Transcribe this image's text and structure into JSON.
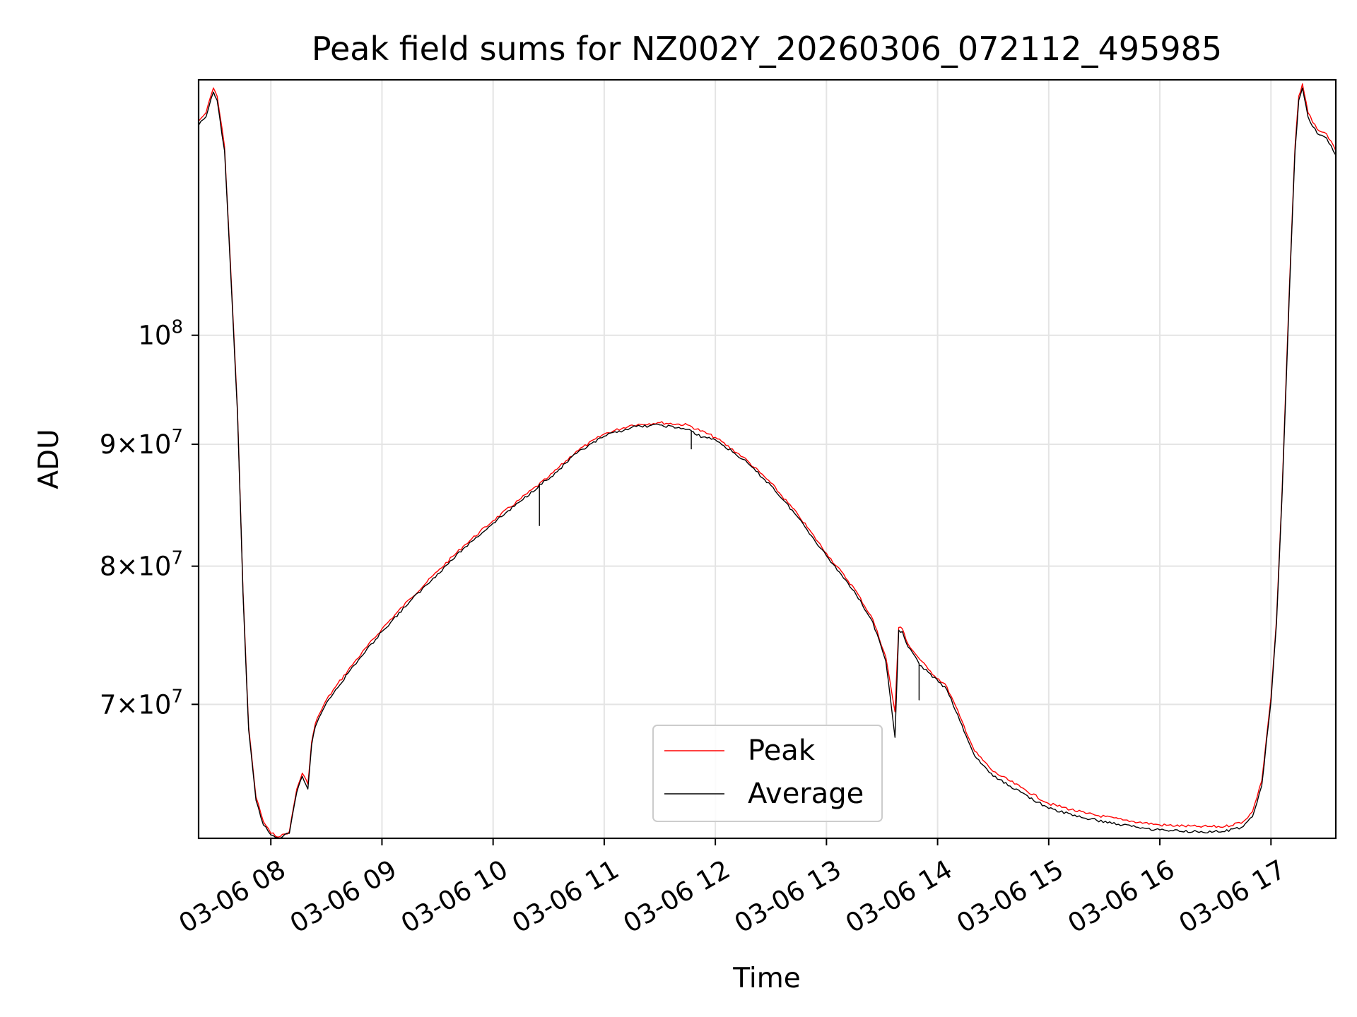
{
  "chart_data": {
    "type": "line",
    "title": "Peak field sums for NZ002Y_20260306_072112_495985",
    "xlabel": "Time",
    "ylabel": "ADU",
    "x_scale": "time",
    "y_scale": "log",
    "xlim": [
      "2026-03-06 07:21",
      "2026-03-06 17:35"
    ],
    "ylim": [
      61500000,
      128000000
    ],
    "grid": true,
    "legend_position": "lower center",
    "x_ticks": [
      {
        "value": "2026-03-06 08:00",
        "label": "03-06 08"
      },
      {
        "value": "2026-03-06 09:00",
        "label": "03-06 09"
      },
      {
        "value": "2026-03-06 10:00",
        "label": "03-06 10"
      },
      {
        "value": "2026-03-06 11:00",
        "label": "03-06 11"
      },
      {
        "value": "2026-03-06 12:00",
        "label": "03-06 12"
      },
      {
        "value": "2026-03-06 13:00",
        "label": "03-06 13"
      },
      {
        "value": "2026-03-06 14:00",
        "label": "03-06 14"
      },
      {
        "value": "2026-03-06 15:00",
        "label": "03-06 15"
      },
      {
        "value": "2026-03-06 16:00",
        "label": "03-06 16"
      },
      {
        "value": "2026-03-06 17:00",
        "label": "03-06 17"
      }
    ],
    "y_ticks": [
      {
        "value": 70000000,
        "mant": "7",
        "exp": "7"
      },
      {
        "value": 80000000,
        "mant": "8",
        "exp": "7"
      },
      {
        "value": 90000000,
        "mant": "9",
        "exp": "7"
      },
      {
        "value": 100000000,
        "mant": "",
        "exp": "8"
      }
    ],
    "series": [
      {
        "name": "Peak",
        "color": "#ff0000",
        "x": [
          "2026-03-06 07:21",
          "2026-03-06 07:25",
          "2026-03-06 07:29",
          "2026-03-06 07:31",
          "2026-03-06 07:35",
          "2026-03-06 07:38",
          "2026-03-06 07:42",
          "2026-03-06 07:45",
          "2026-03-06 07:48",
          "2026-03-06 07:52",
          "2026-03-06 07:56",
          "2026-03-06 08:00",
          "2026-03-06 08:05",
          "2026-03-06 08:10",
          "2026-03-06 08:14",
          "2026-03-06 08:17",
          "2026-03-06 08:20",
          "2026-03-06 08:22",
          "2026-03-06 08:24",
          "2026-03-06 08:26",
          "2026-03-06 08:28",
          "2026-03-06 08:30",
          "2026-03-06 08:35",
          "2026-03-06 08:45",
          "2026-03-06 09:00",
          "2026-03-06 09:15",
          "2026-03-06 09:30",
          "2026-03-06 09:45",
          "2026-03-06 10:00",
          "2026-03-06 10:15",
          "2026-03-06 10:30",
          "2026-03-06 10:45",
          "2026-03-06 11:00",
          "2026-03-06 11:15",
          "2026-03-06 11:30",
          "2026-03-06 11:45",
          "2026-03-06 12:00",
          "2026-03-06 12:15",
          "2026-03-06 12:30",
          "2026-03-06 12:45",
          "2026-03-06 13:00",
          "2026-03-06 13:15",
          "2026-03-06 13:25",
          "2026-03-06 13:32",
          "2026-03-06 13:37",
          "2026-03-06 13:39",
          "2026-03-06 13:41",
          "2026-03-06 13:44",
          "2026-03-06 13:48",
          "2026-03-06 13:55",
          "2026-03-06 14:05",
          "2026-03-06 14:12",
          "2026-03-06 14:20",
          "2026-03-06 14:30",
          "2026-03-06 14:45",
          "2026-03-06 15:00",
          "2026-03-06 15:20",
          "2026-03-06 15:40",
          "2026-03-06 16:00",
          "2026-03-06 16:20",
          "2026-03-06 16:35",
          "2026-03-06 16:45",
          "2026-03-06 16:50",
          "2026-03-06 16:55",
          "2026-03-06 17:00",
          "2026-03-06 17:03",
          "2026-03-06 17:06",
          "2026-03-06 17:10",
          "2026-03-06 17:13",
          "2026-03-06 17:15",
          "2026-03-06 17:17",
          "2026-03-06 17:20",
          "2026-03-06 17:25",
          "2026-03-06 17:30",
          "2026-03-06 17:35"
        ],
        "y": [
          123000000,
          124000000,
          127000000,
          126000000,
          120000000,
          108000000,
          93000000,
          78000000,
          68500000,
          64000000,
          62500000,
          61800000,
          61600000,
          61900000,
          64500000,
          65500000,
          64800000,
          67500000,
          68700000,
          69300000,
          69800000,
          70300000,
          71200000,
          72900000,
          75300000,
          77500000,
          79600000,
          81700000,
          83600000,
          85400000,
          87200000,
          89400000,
          90900000,
          91700000,
          91900000,
          91700000,
          90600000,
          88900000,
          86700000,
          84000000,
          81000000,
          78300000,
          76000000,
          73300000,
          69500000,
          75400000,
          75300000,
          74200000,
          73500000,
          72400000,
          71200000,
          69200000,
          66900000,
          65600000,
          64600000,
          63600000,
          63000000,
          62600000,
          62300000,
          62200000,
          62200000,
          62500000,
          63100000,
          65000000,
          70500000,
          76000000,
          86000000,
          105000000,
          120000000,
          126000000,
          127500000,
          124000000,
          122000000,
          121500000,
          119500000
        ]
      },
      {
        "name": "Average",
        "color": "#000000",
        "x": [
          "2026-03-06 07:21",
          "2026-03-06 07:25",
          "2026-03-06 07:29",
          "2026-03-06 07:31",
          "2026-03-06 07:35",
          "2026-03-06 07:38",
          "2026-03-06 07:42",
          "2026-03-06 07:45",
          "2026-03-06 07:48",
          "2026-03-06 07:52",
          "2026-03-06 07:56",
          "2026-03-06 08:00",
          "2026-03-06 08:05",
          "2026-03-06 08:10",
          "2026-03-06 08:14",
          "2026-03-06 08:17",
          "2026-03-06 08:20",
          "2026-03-06 08:22",
          "2026-03-06 08:24",
          "2026-03-06 08:26",
          "2026-03-06 08:28",
          "2026-03-06 08:30",
          "2026-03-06 08:35",
          "2026-03-06 08:45",
          "2026-03-06 09:00",
          "2026-03-06 09:15",
          "2026-03-06 09:30",
          "2026-03-06 09:45",
          "2026-03-06 10:00",
          "2026-03-06 10:15",
          "2026-03-06 10:25",
          "2026-03-06 10:25",
          "2026-03-06 10:25",
          "2026-03-06 10:30",
          "2026-03-06 10:45",
          "2026-03-06 11:00",
          "2026-03-06 11:15",
          "2026-03-06 11:30",
          "2026-03-06 11:45",
          "2026-03-06 11:47",
          "2026-03-06 11:47",
          "2026-03-06 11:47",
          "2026-03-06 11:50",
          "2026-03-06 12:00",
          "2026-03-06 12:15",
          "2026-03-06 12:30",
          "2026-03-06 12:45",
          "2026-03-06 13:00",
          "2026-03-06 13:15",
          "2026-03-06 13:25",
          "2026-03-06 13:32",
          "2026-03-06 13:37",
          "2026-03-06 13:39",
          "2026-03-06 13:41",
          "2026-03-06 13:44",
          "2026-03-06 13:48",
          "2026-03-06 13:50",
          "2026-03-06 13:50",
          "2026-03-06 13:50",
          "2026-03-06 13:55",
          "2026-03-06 14:05",
          "2026-03-06 14:12",
          "2026-03-06 14:20",
          "2026-03-06 14:30",
          "2026-03-06 14:45",
          "2026-03-06 15:00",
          "2026-03-06 15:20",
          "2026-03-06 15:40",
          "2026-03-06 16:00",
          "2026-03-06 16:20",
          "2026-03-06 16:35",
          "2026-03-06 16:45",
          "2026-03-06 16:50",
          "2026-03-06 16:55",
          "2026-03-06 17:00",
          "2026-03-06 17:03",
          "2026-03-06 17:06",
          "2026-03-06 17:10",
          "2026-03-06 17:13",
          "2026-03-06 17:15",
          "2026-03-06 17:17",
          "2026-03-06 17:20",
          "2026-03-06 17:25",
          "2026-03-06 17:30",
          "2026-03-06 17:35"
        ],
        "y": [
          122500000,
          123500000,
          126500000,
          125500000,
          119500000,
          107500000,
          92800000,
          77800000,
          68300000,
          63800000,
          62300000,
          61700000,
          61500000,
          61800000,
          64300000,
          65300000,
          64500000,
          67300000,
          68500000,
          69100000,
          69600000,
          70100000,
          71000000,
          72700000,
          75100000,
          77300000,
          79400000,
          81500000,
          83400000,
          85200000,
          86500000,
          83200000,
          86600000,
          87000000,
          89200000,
          90700000,
          91500000,
          91700000,
          91300000,
          91200000,
          89600000,
          91100000,
          90800000,
          90400000,
          88700000,
          86500000,
          83800000,
          80800000,
          78100000,
          75800000,
          73000000,
          67800000,
          75200000,
          75100000,
          74000000,
          73300000,
          72800000,
          70300000,
          72700000,
          72200000,
          71000000,
          68900000,
          66600000,
          65300000,
          64300000,
          63300000,
          62700000,
          62300000,
          62000000,
          61900000,
          61900000,
          62200000,
          62800000,
          64700000,
          70200000,
          75700000,
          85700000,
          104500000,
          119500000,
          125500000,
          127000000,
          123500000,
          121500000,
          121000000,
          119000000
        ]
      }
    ]
  }
}
